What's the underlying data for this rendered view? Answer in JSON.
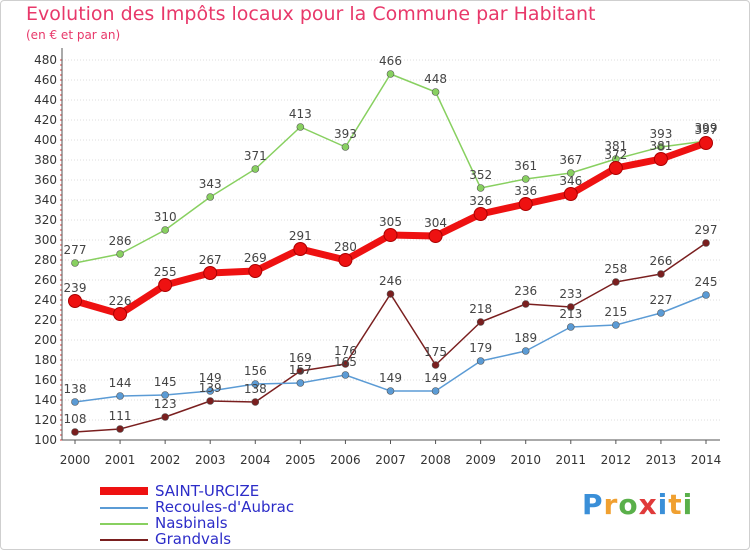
{
  "title": "Evolution des Impôts locaux pour la Commune par Habitant",
  "subtitle": "(en € et par an)",
  "brand": {
    "text": "Proxiti"
  },
  "chart_data": {
    "type": "line",
    "title": "Evolution des Impôts locaux pour la Commune par Habitant",
    "subtitle": "(en € et par an)",
    "x": [
      "2000",
      "2001",
      "2002",
      "2003",
      "2004",
      "2005",
      "2006",
      "2007",
      "2008",
      "2009",
      "2010",
      "2011",
      "2012",
      "2013",
      "2014"
    ],
    "ylim": [
      100,
      480
    ],
    "yticks": [
      100,
      120,
      140,
      160,
      180,
      200,
      220,
      240,
      260,
      280,
      300,
      320,
      340,
      360,
      380,
      400,
      420,
      440,
      460,
      480
    ],
    "grid": "horizontal",
    "legend_position": "bottom-left",
    "series": [
      {
        "name": "SAINT-URCIZE",
        "color": "#ee1111",
        "values": [
          239,
          226,
          255,
          267,
          269,
          291,
          280,
          305,
          304,
          326,
          336,
          346,
          372,
          381,
          397
        ]
      },
      {
        "name": "Recoules-d'Aubrac",
        "color": "#5b9bd5",
        "values": [
          138,
          144,
          145,
          149,
          156,
          157,
          165,
          149,
          149,
          179,
          189,
          213,
          215,
          227,
          245
        ]
      },
      {
        "name": "Nasbinals",
        "color": "#88d060",
        "values": [
          277,
          286,
          310,
          343,
          371,
          413,
          393,
          466,
          448,
          352,
          361,
          367,
          381,
          393,
          399
        ]
      },
      {
        "name": "Grandvals",
        "color": "#7a1f1f",
        "values": [
          108,
          111,
          123,
          139,
          138,
          169,
          176,
          246,
          175,
          218,
          236,
          233,
          258,
          266,
          297
        ]
      }
    ],
    "data_labels": {
      "SAINT-URCIZE": [
        "239",
        "226",
        "255",
        "267",
        "269",
        "291",
        "280",
        "305",
        "304",
        "326",
        "336",
        "346",
        "372",
        "381",
        "397"
      ],
      "Recoules-d'Aubrac": [
        "138",
        "144",
        "145",
        "149",
        "156",
        "157",
        "165",
        "149",
        "149",
        "179",
        "189",
        "213",
        "215",
        "227",
        "245"
      ],
      "Nasbinals": [
        "277",
        "286",
        "310",
        "343",
        "371",
        "413",
        "393",
        "466",
        "448",
        "352",
        "361",
        "367",
        "381",
        "393",
        "399"
      ],
      "Grandvals": [
        "108",
        "111",
        "123",
        "139",
        "138",
        "169",
        "176",
        "246",
        "175",
        "218",
        "236",
        "233",
        "258",
        "266",
        "297"
      ]
    }
  }
}
